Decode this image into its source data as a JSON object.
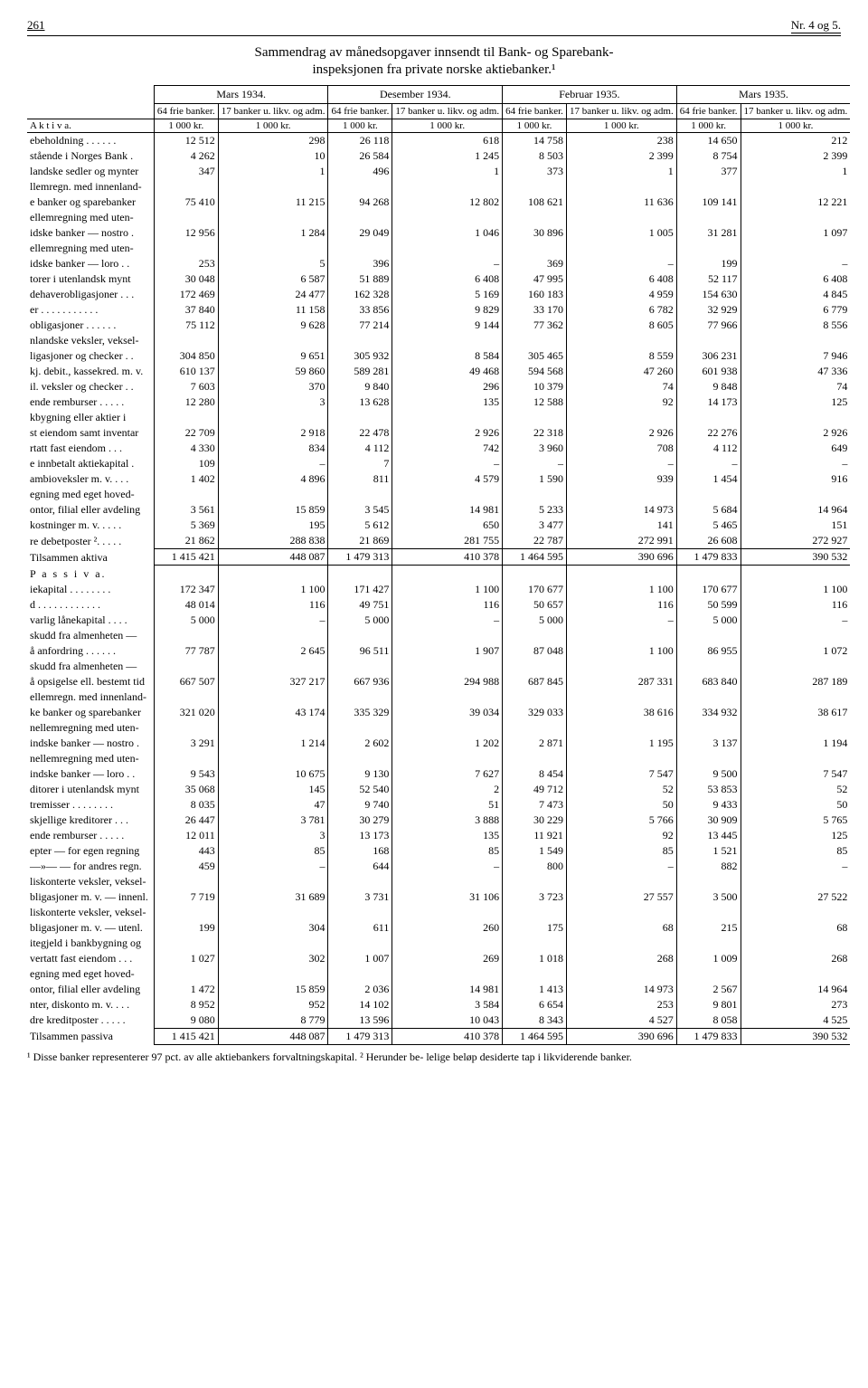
{
  "page_number": "261",
  "issue": "Nr. 4 og 5.",
  "title": "Sammendrag av månedsopgaver innsendt til Bank- og Sparebank-",
  "subtitle": "inspeksjonen fra private norske aktiebanker.¹",
  "periods": [
    "Mars 1934.",
    "Desember 1934.",
    "Februar 1935.",
    "Mars 1935."
  ],
  "subcols": {
    "a": "64 frie banker.",
    "b": "17 banker u. likv. og adm."
  },
  "unit": "1 000 kr.",
  "section_aktiva": "A k t i v a.",
  "section_passiva": "P a s s i v a.",
  "aktiva_rows": [
    {
      "label": "ebeholdning . . . . . .",
      "v": [
        "12 512",
        "298",
        "26 118",
        "618",
        "14 758",
        "238",
        "14 650",
        "212"
      ]
    },
    {
      "label": "stående i Norges Bank .",
      "v": [
        "4 262",
        "10",
        "26 584",
        "1 245",
        "8 503",
        "2 399",
        "8 754",
        "2 399"
      ]
    },
    {
      "label": "landske sedler og mynter",
      "v": [
        "347",
        "1",
        "496",
        "1",
        "373",
        "1",
        "377",
        "1"
      ]
    },
    {
      "label": "llemregn. med innenland-",
      "v": [
        "",
        "",
        "",
        "",
        "",
        "",
        "",
        ""
      ]
    },
    {
      "label": "e banker og sparebanker",
      "v": [
        "75 410",
        "11 215",
        "94 268",
        "12 802",
        "108 621",
        "11 636",
        "109 141",
        "12 221"
      ]
    },
    {
      "label": "ellemregning med uten-",
      "v": [
        "",
        "",
        "",
        "",
        "",
        "",
        "",
        ""
      ]
    },
    {
      "label": "idske banker — nostro .",
      "v": [
        "12 956",
        "1 284",
        "29 049",
        "1 046",
        "30 896",
        "1 005",
        "31 281",
        "1 097"
      ]
    },
    {
      "label": "ellemregning med uten-",
      "v": [
        "",
        "",
        "",
        "",
        "",
        "",
        "",
        ""
      ]
    },
    {
      "label": "idske banker — loro . .",
      "v": [
        "253",
        "5",
        "396",
        "–",
        "369",
        "–",
        "199",
        "–"
      ]
    },
    {
      "label": "torer i utenlandsk mynt",
      "v": [
        "30 048",
        "6 587",
        "51 889",
        "6 408",
        "47 995",
        "6 408",
        "52 117",
        "6 408"
      ]
    },
    {
      "label": "dehaverobligasjoner . . .",
      "v": [
        "172 469",
        "24 477",
        "162 328",
        "5 169",
        "160 183",
        "4 959",
        "154 630",
        "4 845"
      ]
    },
    {
      "label": "er . . . . . . . . . . .",
      "v": [
        "37 840",
        "11 158",
        "33 856",
        "9 829",
        "33 170",
        "6 782",
        "32 929",
        "6 779"
      ]
    },
    {
      "label": "obligasjoner . . . . . .",
      "v": [
        "75 112",
        "9 628",
        "77 214",
        "9 144",
        "77 362",
        "8 605",
        "77 966",
        "8 556"
      ]
    },
    {
      "label": "nlandske veksler, veksel-",
      "v": [
        "",
        "",
        "",
        "",
        "",
        "",
        "",
        ""
      ]
    },
    {
      "label": "ligasjoner og checker . .",
      "v": [
        "304 850",
        "9 651",
        "305 932",
        "8 584",
        "305 465",
        "8 559",
        "306 231",
        "7 946"
      ]
    },
    {
      "label": "kj. debit., kassekred. m. v.",
      "v": [
        "610 137",
        "59 860",
        "589 281",
        "49 468",
        "594 568",
        "47 260",
        "601 938",
        "47 336"
      ]
    },
    {
      "label": "il. veksler og checker . .",
      "v": [
        "7 603",
        "370",
        "9 840",
        "296",
        "10 379",
        "74",
        "9 848",
        "74"
      ]
    },
    {
      "label": "ende remburser . . . . .",
      "v": [
        "12 280",
        "3",
        "13 628",
        "135",
        "12 588",
        "92",
        "14 173",
        "125"
      ]
    },
    {
      "label": "kbygning eller aktier i",
      "v": [
        "",
        "",
        "",
        "",
        "",
        "",
        "",
        ""
      ]
    },
    {
      "label": "st eiendom samt inventar",
      "v": [
        "22 709",
        "2 918",
        "22 478",
        "2 926",
        "22 318",
        "2 926",
        "22 276",
        "2 926"
      ]
    },
    {
      "label": "rtatt fast eiendom . . .",
      "v": [
        "4 330",
        "834",
        "4 112",
        "742",
        "3 960",
        "708",
        "4 112",
        "649"
      ]
    },
    {
      "label": "e innbetalt aktiekapital .",
      "v": [
        "109",
        "–",
        "7",
        "–",
        "–",
        "–",
        "–",
        "–"
      ]
    },
    {
      "label": "ambioveksler m. v. . . .",
      "v": [
        "1 402",
        "4 896",
        "811",
        "4 579",
        "1 590",
        "939",
        "1 454",
        "916"
      ]
    },
    {
      "label": "egning med eget hoved-",
      "v": [
        "",
        "",
        "",
        "",
        "",
        "",
        "",
        ""
      ]
    },
    {
      "label": "ontor, filial eller avdeling",
      "v": [
        "3 561",
        "15 859",
        "3 545",
        "14 981",
        "5 233",
        "14 973",
        "5 684",
        "14 964"
      ]
    },
    {
      "label": "kostninger m. v. . . . .",
      "v": [
        "5 369",
        "195",
        "5 612",
        "650",
        "3 477",
        "141",
        "5 465",
        "151"
      ]
    },
    {
      "label": "re debetposter ². . . . .",
      "v": [
        "21 862",
        "288 838",
        "21 869",
        "281 755",
        "22 787",
        "272 991",
        "26 608",
        "272 927"
      ]
    }
  ],
  "aktiva_total": {
    "label": "Tilsammen aktiva",
    "v": [
      "1 415 421",
      "448 087",
      "1 479 313",
      "410 378",
      "1 464 595",
      "390 696",
      "1 479 833",
      "390 532"
    ]
  },
  "passiva_rows": [
    {
      "label": "iekapital . . . . . . . .",
      "v": [
        "172 347",
        "1 100",
        "171 427",
        "1 100",
        "170 677",
        "1 100",
        "170 677",
        "1 100"
      ]
    },
    {
      "label": "d . . . . . . . . . . . .",
      "v": [
        "48 014",
        "116",
        "49 751",
        "116",
        "50 657",
        "116",
        "50 599",
        "116"
      ]
    },
    {
      "label": "varlig lånekapital . . . .",
      "v": [
        "5 000",
        "–",
        "5 000",
        "–",
        "5 000",
        "–",
        "5 000",
        "–"
      ]
    },
    {
      "label": "skudd fra almenheten —",
      "v": [
        "",
        "",
        "",
        "",
        "",
        "",
        "",
        ""
      ]
    },
    {
      "label": "å anfordring . . . . . .",
      "v": [
        "77 787",
        "2 645",
        "96 511",
        "1 907",
        "87 048",
        "1 100",
        "86 955",
        "1 072"
      ]
    },
    {
      "label": "skudd fra almenheten —",
      "v": [
        "",
        "",
        "",
        "",
        "",
        "",
        "",
        ""
      ]
    },
    {
      "label": "å opsigelse ell. bestemt tid",
      "v": [
        "667 507",
        "327 217",
        "667 936",
        "294 988",
        "687 845",
        "287 331",
        "683 840",
        "287 189"
      ]
    },
    {
      "label": "ellemregn. med innenland-",
      "v": [
        "",
        "",
        "",
        "",
        "",
        "",
        "",
        ""
      ]
    },
    {
      "label": "ke banker og sparebanker",
      "v": [
        "321 020",
        "43 174",
        "335 329",
        "39 034",
        "329 033",
        "38 616",
        "334 932",
        "38 617"
      ]
    },
    {
      "label": "nellemregning med uten-",
      "v": [
        "",
        "",
        "",
        "",
        "",
        "",
        "",
        ""
      ]
    },
    {
      "label": "indske banker — nostro .",
      "v": [
        "3 291",
        "1 214",
        "2 602",
        "1 202",
        "2 871",
        "1 195",
        "3 137",
        "1 194"
      ]
    },
    {
      "label": "nellemregning med uten-",
      "v": [
        "",
        "",
        "",
        "",
        "",
        "",
        "",
        ""
      ]
    },
    {
      "label": "indske banker — loro . .",
      "v": [
        "9 543",
        "10 675",
        "9 130",
        "7 627",
        "8 454",
        "7 547",
        "9 500",
        "7 547"
      ]
    },
    {
      "label": "ditorer i utenlandsk mynt",
      "v": [
        "35 068",
        "145",
        "52 540",
        "2",
        "49 712",
        "52",
        "53 853",
        "52"
      ]
    },
    {
      "label": "tremisser . . . . . . . .",
      "v": [
        "8 035",
        "47",
        "9 740",
        "51",
        "7 473",
        "50",
        "9 433",
        "50"
      ]
    },
    {
      "label": "skjellige kreditorer . . .",
      "v": [
        "26 447",
        "3 781",
        "30 279",
        "3 888",
        "30 229",
        "5 766",
        "30 909",
        "5 765"
      ]
    },
    {
      "label": "ende remburser . . . . .",
      "v": [
        "12 011",
        "3",
        "13 173",
        "135",
        "11 921",
        "92",
        "13 445",
        "125"
      ]
    },
    {
      "label": "epter — for egen regning",
      "v": [
        "443",
        "85",
        "168",
        "85",
        "1 549",
        "85",
        "1 521",
        "85"
      ]
    },
    {
      "label": "—»—  — for andres regn.",
      "v": [
        "459",
        "–",
        "644",
        "–",
        "800",
        "–",
        "882",
        "–"
      ]
    },
    {
      "label": "liskonterte veksler, veksel-",
      "v": [
        "",
        "",
        "",
        "",
        "",
        "",
        "",
        ""
      ]
    },
    {
      "label": "bligasjoner m. v. — innenl.",
      "v": [
        "7 719",
        "31 689",
        "3 731",
        "31 106",
        "3 723",
        "27 557",
        "3 500",
        "27 522"
      ]
    },
    {
      "label": "liskonterte veksler, veksel-",
      "v": [
        "",
        "",
        "",
        "",
        "",
        "",
        "",
        ""
      ]
    },
    {
      "label": "bligasjoner m. v. — utenl.",
      "v": [
        "199",
        "304",
        "611",
        "260",
        "175",
        "68",
        "215",
        "68"
      ]
    },
    {
      "label": "itegjeld i bankbygning og",
      "v": [
        "",
        "",
        "",
        "",
        "",
        "",
        "",
        ""
      ]
    },
    {
      "label": "vertatt fast eiendom . . .",
      "v": [
        "1 027",
        "302",
        "1 007",
        "269",
        "1 018",
        "268",
        "1 009",
        "268"
      ]
    },
    {
      "label": "egning med eget hoved-",
      "v": [
        "",
        "",
        "",
        "",
        "",
        "",
        "",
        ""
      ]
    },
    {
      "label": "ontor, filial eller avdeling",
      "v": [
        "1 472",
        "15 859",
        "2 036",
        "14 981",
        "1 413",
        "14 973",
        "2 567",
        "14 964"
      ]
    },
    {
      "label": "nter, diskonto m. v. . . .",
      "v": [
        "8 952",
        "952",
        "14 102",
        "3 584",
        "6 654",
        "253",
        "9 801",
        "273"
      ]
    },
    {
      "label": "dre kreditposter . . . . .",
      "v": [
        "9 080",
        "8 779",
        "13 596",
        "10 043",
        "8 343",
        "4 527",
        "8 058",
        "4 525"
      ]
    }
  ],
  "passiva_total": {
    "label": "Tilsammen passiva",
    "v": [
      "1 415 421",
      "448 087",
      "1 479 313",
      "410 378",
      "1 464 595",
      "390 696",
      "1 479 833",
      "390 532"
    ]
  },
  "footnote": "¹ Disse banker representerer 97 pct. av alle aktiebankers forvaltningskapital.   ² Herunder be- lelige beløp desiderte tap i likviderende banker."
}
